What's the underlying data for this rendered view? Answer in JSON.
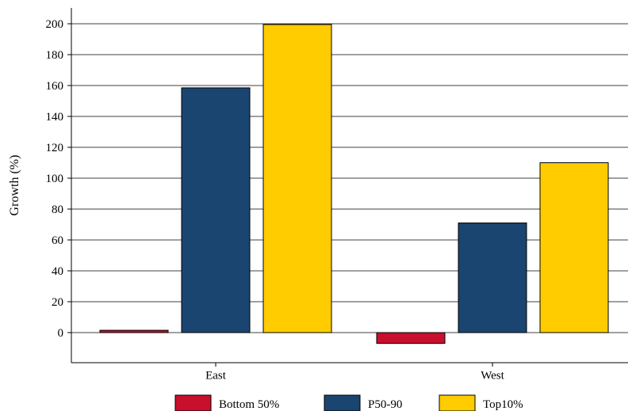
{
  "chart_data": {
    "type": "bar",
    "categories": [
      "East",
      "West"
    ],
    "series": [
      {
        "name": "Bottom 50%",
        "values": [
          1.5,
          -7
        ],
        "color": "#c8102e"
      },
      {
        "name": "P50-90",
        "values": [
          158.5,
          71
        ],
        "color": "#1a4570"
      },
      {
        "name": "Top10%",
        "values": [
          199.5,
          110
        ],
        "color": "#ffcc00"
      }
    ],
    "title": "",
    "xlabel": "",
    "ylabel": "Growth (%)",
    "ylim": [
      -20,
      210
    ],
    "yticks": [
      0,
      20,
      40,
      60,
      80,
      100,
      120,
      140,
      160,
      180,
      200
    ],
    "grid": "horizontal",
    "legend_position": "bottom"
  }
}
